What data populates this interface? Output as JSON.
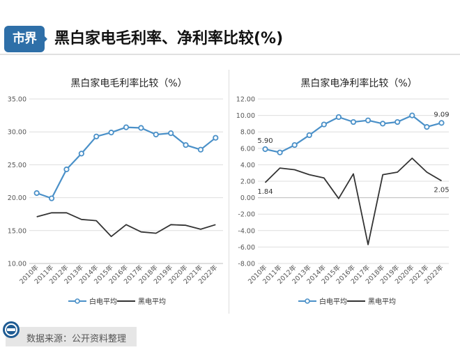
{
  "header": {
    "logo_text": "市界",
    "headline": "黑白家电毛利率、净利率比较(%)"
  },
  "source": {
    "text": "数据来源：公开资料整理"
  },
  "chart_data": [
    {
      "type": "line",
      "title": "黑白家电毛利率比较（%）",
      "categories": [
        "2010年",
        "2011年",
        "2012年",
        "2013年",
        "2014年",
        "2015年",
        "2016年",
        "2017年",
        "2018年",
        "2019年",
        "2020年",
        "2021年",
        "2022年"
      ],
      "ylim": [
        10,
        35
      ],
      "yticks": [
        "10.00",
        "15.00",
        "20.00",
        "25.00",
        "30.00",
        "35.00"
      ],
      "grid": true,
      "legend": "bottom",
      "series": [
        {
          "name": "白电平均",
          "color": "#4a90c8",
          "marker": "circle",
          "values": [
            20.7,
            19.9,
            24.3,
            26.7,
            29.3,
            29.9,
            30.7,
            30.6,
            29.6,
            29.8,
            28.0,
            27.3,
            29.1
          ]
        },
        {
          "name": "黑电平均",
          "color": "#333333",
          "marker": "none",
          "values": [
            17.1,
            17.7,
            17.7,
            16.7,
            16.5,
            14.1,
            15.9,
            14.8,
            14.6,
            15.9,
            15.8,
            15.2,
            15.9
          ]
        }
      ],
      "annotations": []
    },
    {
      "type": "line",
      "title": "黑白家电净利率比较（%）",
      "categories": [
        "2010年",
        "2011年",
        "2012年",
        "2013年",
        "2014年",
        "2015年",
        "2016年",
        "2017年",
        "2018年",
        "2019年",
        "2020年",
        "2021年",
        "2022年"
      ],
      "ylim": [
        -8,
        12
      ],
      "yticks": [
        "-8.00",
        "-6.00",
        "-4.00",
        "-2.00",
        "0.00",
        "2.00",
        "4.00",
        "6.00",
        "8.00",
        "10.00",
        "12.00"
      ],
      "grid": true,
      "legend": "bottom",
      "series": [
        {
          "name": "白电平均",
          "color": "#4a90c8",
          "marker": "circle",
          "values": [
            5.9,
            5.5,
            6.4,
            7.6,
            8.9,
            9.8,
            9.2,
            9.4,
            9.0,
            9.2,
            10.0,
            8.6,
            9.09
          ]
        },
        {
          "name": "黑电平均",
          "color": "#333333",
          "marker": "none",
          "values": [
            1.84,
            3.6,
            3.4,
            2.8,
            2.4,
            -0.1,
            2.9,
            -5.7,
            2.8,
            3.1,
            4.8,
            3.1,
            2.05
          ]
        }
      ],
      "annotations": [
        {
          "text": "5.90",
          "series": 0,
          "index": 0,
          "pos": "above"
        },
        {
          "text": "1.84",
          "series": 1,
          "index": 0,
          "pos": "below"
        },
        {
          "text": "9.09",
          "series": 0,
          "index": 12,
          "pos": "above"
        },
        {
          "text": "2.05",
          "series": 1,
          "index": 12,
          "pos": "below"
        }
      ]
    }
  ]
}
